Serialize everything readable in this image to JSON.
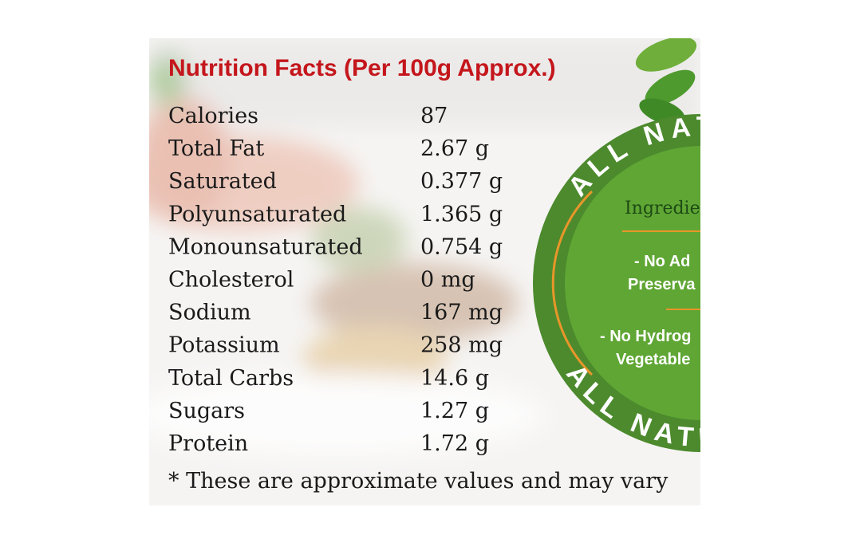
{
  "header": {
    "title": "Nutrition Facts (Per 100g Approx.)"
  },
  "rows": [
    [
      "Calories",
      "87"
    ],
    [
      "Total Fat",
      "2.67 g"
    ],
    [
      "Saturated",
      "0.377 g"
    ],
    [
      "Polyunsaturated",
      "1.365 g"
    ],
    [
      "Monounsaturated",
      "0.754 g"
    ],
    [
      "Cholesterol",
      "0 mg"
    ],
    [
      "Sodium",
      "167 mg"
    ],
    [
      "Potassium",
      "258 mg"
    ],
    [
      "Total Carbs",
      "14.6 g"
    ],
    [
      "Sugars",
      "1.27 g"
    ],
    [
      "Protein",
      "1.72 g"
    ]
  ],
  "footnote": "* These are approximate values and may vary",
  "badge": {
    "top_arc": "ALL NAT",
    "heading": "Ingredie",
    "line1": "- No Ad",
    "line2": "Preserva",
    "line3": "- No Hydrog",
    "line4": "Vegetable",
    "bottom_arc": "ALL NATU"
  }
}
